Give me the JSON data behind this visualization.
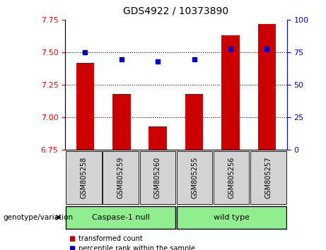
{
  "title": "GDS4922 / 10373890",
  "categories": [
    "GSM805258",
    "GSM805259",
    "GSM805260",
    "GSM805255",
    "GSM805256",
    "GSM805257"
  ],
  "bar_values": [
    7.42,
    7.18,
    6.93,
    7.18,
    7.63,
    7.72
  ],
  "percentile_values": [
    75,
    70,
    68,
    70,
    78,
    78
  ],
  "ylim_left": [
    6.75,
    7.75
  ],
  "ylim_right": [
    0,
    100
  ],
  "bar_color": "#cc0000",
  "dot_color": "#0000cc",
  "grid_yticks_left": [
    6.75,
    7.0,
    7.25,
    7.5,
    7.75
  ],
  "grid_yticks_right": [
    0,
    25,
    50,
    75,
    100
  ],
  "group1_label": "Caspase-1 null",
  "group2_label": "wild type",
  "genotype_label": "genotype/variation",
  "legend_red": "transformed count",
  "legend_blue": "percentile rank within the sample",
  "group_bg_color": "#90ee90",
  "tick_bg_color": "#d3d3d3",
  "bar_width": 0.5,
  "figsize": [
    4.61,
    3.54
  ],
  "dpi": 100
}
